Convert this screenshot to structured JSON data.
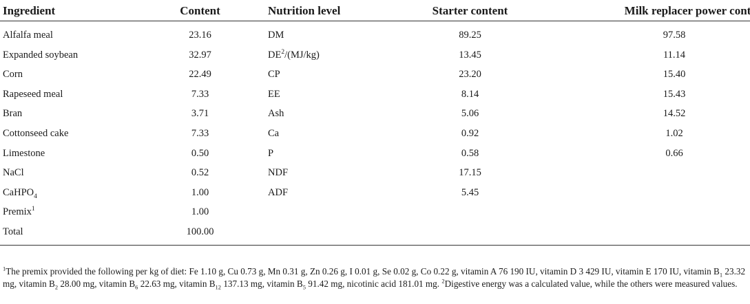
{
  "headers": {
    "ingredient": "Ingredient",
    "content": "Content",
    "nutrition_level": "Nutrition level",
    "starter_content": "Starter content",
    "milk_replacer": "Milk replacer power content"
  },
  "rows": [
    {
      "ingredient": "Alfalfa meal",
      "ing_sub": "",
      "ing_sup": "",
      "content": "23.16",
      "nutrient": "DM",
      "nut_sup": "",
      "nut_rest": "",
      "starter": "89.25",
      "milk": "97.58"
    },
    {
      "ingredient": "Expanded soybean",
      "ing_sub": "",
      "ing_sup": "",
      "content": "32.97",
      "nutrient": "DE",
      "nut_sup": "2",
      "nut_rest": "/(MJ/kg)",
      "starter": "13.45",
      "milk": "11.14"
    },
    {
      "ingredient": "Corn",
      "ing_sub": "",
      "ing_sup": "",
      "content": "22.49",
      "nutrient": "CP",
      "nut_sup": "",
      "nut_rest": "",
      "starter": "23.20",
      "milk": "15.40"
    },
    {
      "ingredient": "Rapeseed meal",
      "ing_sub": "",
      "ing_sup": "",
      "content": "7.33",
      "nutrient": "EE",
      "nut_sup": "",
      "nut_rest": "",
      "starter": "8.14",
      "milk": "15.43"
    },
    {
      "ingredient": "Bran",
      "ing_sub": "",
      "ing_sup": "",
      "content": "3.71",
      "nutrient": "Ash",
      "nut_sup": "",
      "nut_rest": "",
      "starter": "5.06",
      "milk": "14.52"
    },
    {
      "ingredient": "Cottonseed cake",
      "ing_sub": "",
      "ing_sup": "",
      "content": "7.33",
      "nutrient": "Ca",
      "nut_sup": "",
      "nut_rest": "",
      "starter": "0.92",
      "milk": "1.02"
    },
    {
      "ingredient": "Limestone",
      "ing_sub": "",
      "ing_sup": "",
      "content": "0.50",
      "nutrient": "P",
      "nut_sup": "",
      "nut_rest": "",
      "starter": "0.58",
      "milk": "0.66"
    },
    {
      "ingredient": "NaCl",
      "ing_sub": "",
      "ing_sup": "",
      "content": "0.52",
      "nutrient": "NDF",
      "nut_sup": "",
      "nut_rest": "",
      "starter": "17.15",
      "milk": ""
    },
    {
      "ingredient": "CaHPO",
      "ing_sub": "4",
      "ing_sup": "",
      "content": "1.00",
      "nutrient": "ADF",
      "nut_sup": "",
      "nut_rest": "",
      "starter": "5.45",
      "milk": ""
    },
    {
      "ingredient": "Premix",
      "ing_sub": "",
      "ing_sup": "1",
      "content": "1.00",
      "nutrient": "",
      "nut_sup": "",
      "nut_rest": "",
      "starter": "",
      "milk": ""
    },
    {
      "ingredient": "Total",
      "ing_sub": "",
      "ing_sup": "",
      "content": "100.00",
      "nutrient": "",
      "nut_sup": "",
      "nut_rest": "",
      "starter": "",
      "milk": ""
    }
  ],
  "footnote": {
    "m1": "1",
    "t1": "The premix provided the following per kg of diet: Fe 1.10 g, Cu 0.73 g, Mn 0.31 g, Zn 0.26 g, I 0.01 g, Se 0.02 g, Co 0.22 g, vitamin A 76 190 IU, vitamin D 3 429 IU, vitamin E 170 IU, vitamin B",
    "s1": "1",
    "t2": " 23.32 mg, vitamin B",
    "s2": "2",
    "t3": " 28.00 mg, vitamin B",
    "s3": "6",
    "t4": " 22.63 mg, vitamin B",
    "s4": "12",
    "t5": " 137.13 mg, vitamin B",
    "s5": "5",
    "t6": " 91.42 mg, nicotinic acid 181.01 mg. ",
    "m2": "2",
    "t7": "Digestive energy was a calculated value, while the others were measured values."
  }
}
